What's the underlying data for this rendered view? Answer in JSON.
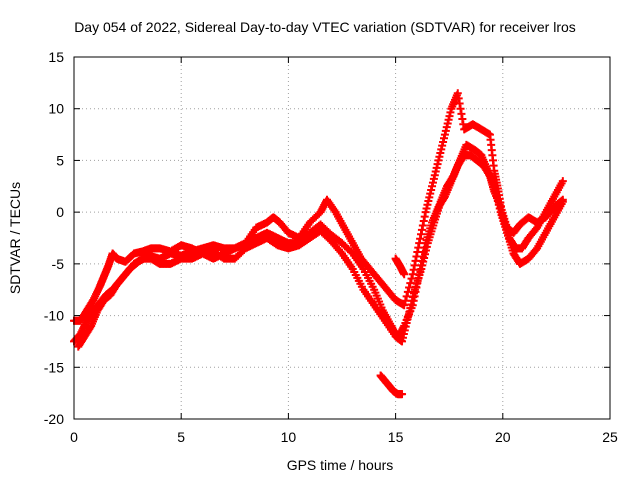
{
  "chart_data": {
    "type": "scatter",
    "title": "Day 054 of 2022, Sidereal Day-to-day VTEC variation (SDTVAR) for receiver lros",
    "xlabel": "GPS time / hours",
    "ylabel": "SDTVAR / TECUs",
    "xlim": [
      0,
      25
    ],
    "ylim": [
      -20,
      15
    ],
    "xticks": [
      0,
      5,
      10,
      15,
      20,
      25
    ],
    "yticks": [
      -20,
      -15,
      -10,
      -5,
      0,
      5,
      10,
      15
    ],
    "grid": true,
    "marker": "+",
    "series": [
      {
        "name": "trace-a",
        "color": "#ff0000",
        "points": [
          [
            0.0,
            -12.5
          ],
          [
            0.3,
            -11.8
          ],
          [
            0.6,
            -10.5
          ],
          [
            0.9,
            -9.5
          ],
          [
            1.2,
            -8.8
          ],
          [
            1.5,
            -8.0
          ],
          [
            1.8,
            -7.5
          ],
          [
            2.2,
            -6.5
          ],
          [
            2.6,
            -5.5
          ],
          [
            3.0,
            -4.8
          ],
          [
            3.5,
            -4.2
          ],
          [
            4.0,
            -4.5
          ],
          [
            4.5,
            -4.0
          ],
          [
            5.0,
            -4.2
          ],
          [
            5.5,
            -3.8
          ],
          [
            6.0,
            -3.5
          ],
          [
            6.5,
            -3.2
          ],
          [
            7.0,
            -3.5
          ],
          [
            7.5,
            -3.5
          ],
          [
            8.0,
            -3.0
          ],
          [
            8.5,
            -2.5
          ],
          [
            9.0,
            -2.0
          ],
          [
            9.5,
            -2.5
          ],
          [
            10.0,
            -3.0
          ],
          [
            10.5,
            -3.0
          ],
          [
            11.0,
            -2.0
          ],
          [
            11.5,
            -1.2
          ],
          [
            12.0,
            -2.2
          ],
          [
            12.5,
            -3.0
          ],
          [
            13.0,
            -4.0
          ],
          [
            13.5,
            -5.5
          ],
          [
            14.0,
            -7.5
          ],
          [
            14.4,
            -9.5
          ],
          [
            14.8,
            -11.0
          ],
          [
            15.1,
            -12.2
          ],
          [
            15.4,
            -11.0
          ],
          [
            15.8,
            -9.0
          ],
          [
            16.1,
            -6.0
          ],
          [
            16.4,
            -3.0
          ],
          [
            16.7,
            -1.0
          ],
          [
            17.0,
            0.5
          ],
          [
            17.3,
            1.5
          ],
          [
            17.6,
            3.0
          ],
          [
            17.9,
            4.5
          ],
          [
            18.2,
            5.5
          ],
          [
            18.5,
            5.5
          ],
          [
            18.8,
            5.0
          ],
          [
            19.1,
            4.5
          ],
          [
            19.4,
            3.5
          ],
          [
            19.6,
            2.0
          ],
          [
            19.9,
            0.5
          ],
          [
            20.2,
            -1.5
          ],
          [
            20.5,
            -2.0
          ],
          [
            20.8,
            -1.2
          ],
          [
            21.2,
            -0.5
          ],
          [
            21.6,
            -1.0
          ],
          [
            22.0,
            -0.5
          ],
          [
            22.4,
            0.5
          ],
          [
            22.8,
            1.2
          ]
        ]
      },
      {
        "name": "trace-b",
        "color": "#ff0000",
        "points": [
          [
            0.0,
            -10.5
          ],
          [
            0.3,
            -10.5
          ],
          [
            0.6,
            -9.5
          ],
          [
            0.9,
            -8.5
          ],
          [
            1.2,
            -7.2
          ],
          [
            1.4,
            -6.2
          ],
          [
            1.6,
            -5.2
          ],
          [
            1.8,
            -4.0
          ],
          [
            2.0,
            -4.5
          ],
          [
            2.4,
            -4.8
          ],
          [
            2.8,
            -4.0
          ],
          [
            3.2,
            -3.8
          ],
          [
            3.6,
            -3.5
          ],
          [
            4.0,
            -3.5
          ],
          [
            4.5,
            -3.8
          ],
          [
            5.0,
            -3.2
          ],
          [
            5.5,
            -3.5
          ],
          [
            6.0,
            -4.0
          ],
          [
            6.5,
            -4.5
          ],
          [
            7.0,
            -4.0
          ],
          [
            7.5,
            -3.5
          ],
          [
            8.0,
            -3.0
          ],
          [
            8.5,
            -1.5
          ],
          [
            9.0,
            -1.0
          ],
          [
            9.3,
            -0.5
          ],
          [
            9.6,
            -1.0
          ],
          [
            10.0,
            -2.0
          ],
          [
            10.5,
            -2.5
          ],
          [
            11.0,
            -1.0
          ],
          [
            11.5,
            0.0
          ],
          [
            11.8,
            1.2
          ],
          [
            12.2,
            0.0
          ],
          [
            12.6,
            -1.5
          ],
          [
            13.0,
            -3.0
          ],
          [
            13.4,
            -4.5
          ],
          [
            13.8,
            -5.5
          ],
          [
            14.2,
            -6.5
          ],
          [
            14.6,
            -7.5
          ],
          [
            15.0,
            -8.5
          ],
          [
            15.4,
            -9.0
          ],
          [
            15.8,
            -6.0
          ],
          [
            16.1,
            -3.0
          ],
          [
            16.4,
            0.0
          ],
          [
            16.7,
            2.5
          ],
          [
            17.0,
            5.0
          ],
          [
            17.3,
            7.5
          ],
          [
            17.6,
            10.0
          ],
          [
            17.9,
            11.5
          ],
          [
            18.2,
            8.0
          ],
          [
            18.6,
            8.5
          ],
          [
            19.0,
            8.0
          ],
          [
            19.4,
            7.5
          ],
          [
            19.6,
            4.0
          ],
          [
            19.8,
            2.0
          ],
          [
            20.0,
            -0.5
          ],
          [
            20.3,
            -2.5
          ],
          [
            20.6,
            -3.5
          ],
          [
            20.9,
            -3.5
          ],
          [
            21.2,
            -2.5
          ],
          [
            21.6,
            -1.5
          ],
          [
            22.0,
            0.0
          ],
          [
            22.4,
            1.5
          ],
          [
            22.8,
            3.0
          ]
        ]
      },
      {
        "name": "trace-c",
        "color": "#ff0000",
        "points": [
          [
            0.2,
            -13.0
          ],
          [
            0.5,
            -12.0
          ],
          [
            0.8,
            -11.0
          ],
          [
            1.1,
            -9.5
          ],
          [
            1.4,
            -8.5
          ],
          [
            1.7,
            -8.0
          ],
          [
            2.0,
            -7.0
          ],
          [
            2.4,
            -6.0
          ],
          [
            2.8,
            -5.0
          ],
          [
            3.2,
            -4.5
          ],
          [
            3.6,
            -4.5
          ],
          [
            4.0,
            -5.0
          ],
          [
            4.5,
            -5.0
          ],
          [
            5.0,
            -4.5
          ],
          [
            5.5,
            -4.5
          ],
          [
            6.0,
            -4.0
          ],
          [
            6.5,
            -3.8
          ],
          [
            7.0,
            -4.5
          ],
          [
            7.5,
            -4.5
          ],
          [
            8.0,
            -3.5
          ],
          [
            8.5,
            -3.0
          ],
          [
            9.0,
            -2.5
          ],
          [
            9.5,
            -3.2
          ],
          [
            10.0,
            -3.5
          ],
          [
            10.5,
            -3.2
          ],
          [
            11.0,
            -2.5
          ],
          [
            11.5,
            -1.8
          ],
          [
            12.0,
            -2.8
          ],
          [
            12.5,
            -4.0
          ],
          [
            13.0,
            -5.5
          ],
          [
            13.5,
            -7.5
          ],
          [
            14.0,
            -9.0
          ],
          [
            14.5,
            -10.5
          ],
          [
            15.0,
            -12.0
          ],
          [
            15.3,
            -12.5
          ],
          [
            15.6,
            -10.0
          ],
          [
            15.9,
            -7.5
          ],
          [
            16.2,
            -5.5
          ],
          [
            16.5,
            -3.0
          ],
          [
            16.8,
            -1.0
          ],
          [
            17.1,
            1.0
          ],
          [
            17.4,
            2.5
          ],
          [
            17.7,
            3.5
          ],
          [
            18.0,
            5.0
          ],
          [
            18.3,
            6.5
          ],
          [
            18.7,
            6.0
          ],
          [
            19.0,
            5.5
          ],
          [
            19.3,
            4.0
          ],
          [
            19.6,
            2.5
          ],
          [
            19.9,
            0.0
          ],
          [
            20.2,
            -2.0
          ],
          [
            20.5,
            -4.0
          ],
          [
            20.8,
            -5.0
          ],
          [
            21.2,
            -4.5
          ],
          [
            21.6,
            -3.5
          ],
          [
            22.0,
            -2.0
          ],
          [
            22.4,
            -0.5
          ],
          [
            22.8,
            1.0
          ]
        ]
      },
      {
        "name": "trace-d",
        "color": "#ff0000",
        "points": [
          [
            14.3,
            -15.8
          ],
          [
            14.5,
            -16.3
          ],
          [
            14.7,
            -16.8
          ],
          [
            14.9,
            -17.3
          ],
          [
            15.1,
            -17.6
          ],
          [
            15.3,
            -17.6
          ],
          [
            15.0,
            -4.5
          ],
          [
            15.2,
            -5.2
          ],
          [
            15.4,
            -6.0
          ]
        ]
      }
    ]
  }
}
